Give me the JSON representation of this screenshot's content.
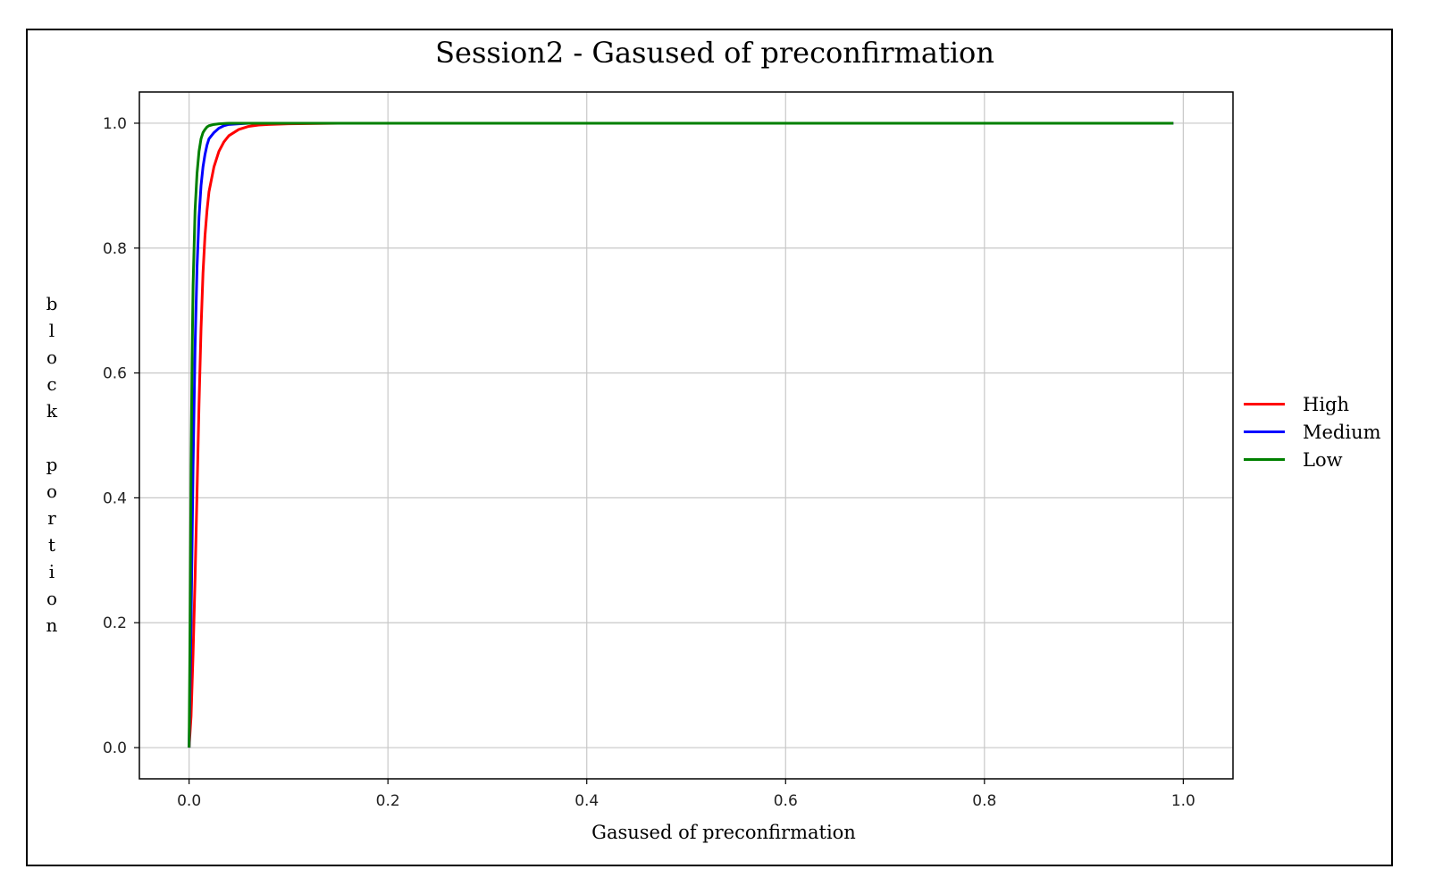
{
  "chart_data": {
    "type": "line",
    "title": "Session2 - Gasused of preconfirmation",
    "xlabel": "Gasused of preconfirmation",
    "ylabel": "block portion",
    "xlim": [
      -0.05,
      1.05
    ],
    "ylim": [
      -0.05,
      1.05
    ],
    "xticks": [
      "0.0",
      "0.2",
      "0.4",
      "0.6",
      "0.8",
      "1.0"
    ],
    "yticks": [
      "0.0",
      "0.2",
      "0.4",
      "0.6",
      "0.8",
      "1.0"
    ],
    "grid": true,
    "legend_position": "right",
    "series": [
      {
        "name": "High",
        "color": "#ff0000",
        "x": [
          0.0,
          0.002,
          0.004,
          0.006,
          0.008,
          0.01,
          0.012,
          0.014,
          0.016,
          0.018,
          0.02,
          0.025,
          0.03,
          0.035,
          0.04,
          0.05,
          0.06,
          0.07,
          0.08,
          0.1,
          0.15,
          0.2,
          0.4,
          0.6,
          0.8,
          0.99
        ],
        "y": [
          0.0,
          0.05,
          0.15,
          0.27,
          0.41,
          0.55,
          0.67,
          0.76,
          0.82,
          0.86,
          0.89,
          0.93,
          0.955,
          0.97,
          0.98,
          0.99,
          0.995,
          0.997,
          0.998,
          0.999,
          1.0,
          1.0,
          1.0,
          1.0,
          1.0,
          1.0
        ]
      },
      {
        "name": "Medium",
        "color": "#0000ff",
        "x": [
          0.0,
          0.002,
          0.004,
          0.006,
          0.008,
          0.01,
          0.012,
          0.014,
          0.016,
          0.018,
          0.02,
          0.025,
          0.03,
          0.035,
          0.04,
          0.05,
          0.06,
          0.08,
          0.1,
          0.2,
          0.4,
          0.6,
          0.8,
          0.99
        ],
        "y": [
          0.0,
          0.2,
          0.45,
          0.64,
          0.77,
          0.85,
          0.9,
          0.93,
          0.95,
          0.965,
          0.975,
          0.985,
          0.992,
          0.996,
          0.998,
          0.999,
          1.0,
          1.0,
          1.0,
          1.0,
          1.0,
          1.0,
          1.0,
          1.0
        ]
      },
      {
        "name": "Low",
        "color": "#008000",
        "x": [
          0.0,
          0.001,
          0.002,
          0.003,
          0.004,
          0.006,
          0.008,
          0.01,
          0.012,
          0.014,
          0.016,
          0.018,
          0.02,
          0.025,
          0.03,
          0.04,
          0.05,
          0.1,
          0.2,
          0.4,
          0.6,
          0.8,
          0.99
        ],
        "y": [
          0.0,
          0.2,
          0.45,
          0.62,
          0.74,
          0.86,
          0.92,
          0.955,
          0.975,
          0.985,
          0.99,
          0.994,
          0.996,
          0.998,
          0.999,
          1.0,
          1.0,
          1.0,
          1.0,
          1.0,
          1.0,
          1.0,
          1.0
        ]
      }
    ]
  }
}
